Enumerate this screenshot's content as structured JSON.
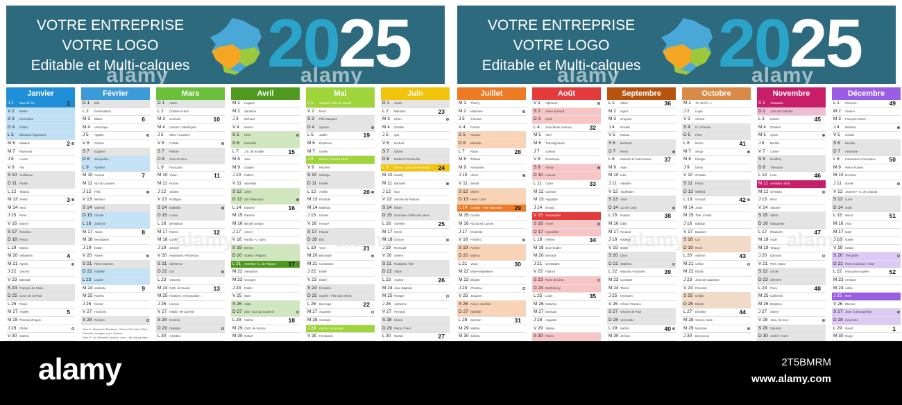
{
  "banner": {
    "line1": "VOTRE ENTREPRISE",
    "line2": "VOTRE LOGO",
    "line3": "Editable et Multi-calques",
    "year_a": "20",
    "year_b": "25"
  },
  "watermark": "alamy",
  "footer": {
    "logo": "alamy",
    "image_id": "2T5BMRM",
    "url": "www.alamy.com"
  },
  "legend_lines": [
    "Zone A : Besançon, Bordeaux, Clermont-Ferrand, Dijon, Grenoble, Limoges, Lyon, Poitiers",
    "Zone B : Aix-Marseille, Amiens, Caen, Lille, Nancy-Metz, Nantes, Nice, Orléans-Tours, Reims, Rennes, Rouen, Strasbourg",
    "Zone C : Créteil, Montpellier, Paris, Toulouse, Versailles"
  ],
  "colors": {
    "banner": "#2e6a7e",
    "year_accent": "#2aa4c8",
    "weekend_hint": "#e4e4e4",
    "zone_a": "#f5a623",
    "zone_b": "#9cc83c",
    "zone_c": "#4aa8d8"
  },
  "months": [
    {
      "name": "Janvier",
      "color": "#1f8ed8",
      "light": "#bde0f7",
      "start": 3,
      "days": 31,
      "names": [
        "Jour de l'An",
        "Basile",
        "Geneviève",
        "Odilon",
        "Édouard / Épiphanie",
        "Mélaine",
        "Raymond",
        "Lucien",
        "Alix",
        "Guillaume",
        "Paulin",
        "Tatiana",
        "Yvette",
        "Nina",
        "Rémi",
        "Marcel",
        "Roseline",
        "Prisca",
        "Marius",
        "Sébastien",
        "Agnès",
        "Vincent",
        "Barnard",
        "François de Sales",
        "Conv. de St Paul",
        "Paule",
        "Angèle",
        "Thomas d'Aquin",
        "Gildas",
        "Martine",
        "Marcelle"
      ],
      "weeks": {
        "1": "1",
        "6": "2",
        "13": "3",
        "20": "4",
        "27": "5"
      },
      "moons": {
        "6": "half",
        "13": "full",
        "21": "half",
        "29": "new"
      },
      "holidays": [
        1
      ],
      "vacances": [
        1,
        2,
        3,
        4,
        5
      ]
    },
    {
      "name": "Février",
      "color": "#3b9ad8",
      "light": "#c4e2f6",
      "start": 6,
      "days": 28,
      "names": [
        "Ella",
        "Présentation",
        "Blaise",
        "Véronique",
        "Agathe",
        "Gaston",
        "Eugénie",
        "Jacqueline",
        "Apolline",
        "Arnaud",
        "ND de Lourdes",
        "Félix",
        "Béatrice",
        "Valentin",
        "Claude",
        "Julienne",
        "Alexis",
        "Bernadette",
        "Gabin",
        "Aimée",
        "Pierre Damien",
        "Isabelle",
        "Lazare",
        "Modeste",
        "Roméo",
        "Nestor",
        "Honorine",
        "Romain"
      ],
      "weeks": {
        "3": "6",
        "10": "7",
        "17": "8",
        "24": "9"
      },
      "moons": {
        "5": "half",
        "12": "full",
        "20": "half",
        "28": "new"
      },
      "holidays": [],
      "vacances": [
        8,
        9,
        15,
        16,
        22,
        23
      ]
    },
    {
      "name": "Mars",
      "color": "#6cbf3a",
      "light": "#d6efc4",
      "start": 6,
      "days": 31,
      "names": [
        "Aubin",
        "Charles le Bon",
        "Guénolé",
        "Casimir / Mardi-gras",
        "Olive / Cendres",
        "Colette",
        "Félicité",
        "Jean De Dieu",
        "Françoise",
        "Vivien",
        "Rosine",
        "Justine",
        "Rodrigue",
        "Mathilde",
        "Louise",
        "Bénédicte",
        "Patrice",
        "Cyrille",
        "Joseph",
        "Alexandre / Printemps",
        "Clémence",
        "Léa",
        "Victorien",
        "Cath. de Suède",
        "Humbert / Annonciation",
        "Larissa",
        "Habib / Mi-Carême",
        "Gontran",
        "Gwladys",
        "Amédée",
        "Benjamin"
      ],
      "weeks": {
        "3": "10",
        "10": "11",
        "17": "12",
        "24": "13",
        "31": "14"
      },
      "moons": {
        "6": "half",
        "14": "full",
        "22": "half",
        "29": "new"
      },
      "holidays": [],
      "vacances": []
    },
    {
      "name": "Avril",
      "color": "#4f9a1e",
      "light": "#cfe7bd",
      "start": 1,
      "days": 30,
      "names": [
        "Hugues",
        "Sandrine",
        "Richard",
        "Isidore",
        "Irène",
        "Marcellin",
        "J.B. de la Salle",
        "Julie",
        "Gautier",
        "Fulbert",
        "Stanislas",
        "Jules",
        "Ida / Rameaux",
        "Maxime",
        "Paterne",
        "Benoît-Joseph",
        "Anicet",
        "Parfait / V. Saint",
        "Emma",
        "Odette / Pâques",
        "Anselme / L. de Pâques",
        "Alexandre",
        "Georges",
        "Fidèle",
        "Marc",
        "Alida",
        "Zita / Jour du Souvenir",
        "Valérie",
        "Cath. de Sienne",
        "Robert"
      ],
      "weeks": {
        "7": "15",
        "14": "16",
        "21": "17",
        "28": "18"
      },
      "moons": {
        "5": "half",
        "13": "full",
        "21": "half",
        "27": "new"
      },
      "holidays": [
        21
      ],
      "vacances": [
        5,
        6,
        12,
        13,
        19,
        20,
        26,
        27
      ]
    },
    {
      "name": "Mai",
      "color": "#9fd43a",
      "light": "#e2f2bd",
      "start": 3,
      "days": 31,
      "names": [
        "Joseph / Fête du Travail",
        "Boris",
        "Phil./Jacques",
        "Sylvain",
        "Judith",
        "Prudence",
        "Gisèle",
        "Désiré / Victoire 1945",
        "Pacôme",
        "Solange",
        "Estelle",
        "Achille",
        "Rolande",
        "Matthias",
        "Denise",
        "Honoré",
        "Pascal",
        "Éric",
        "Yves",
        "Bernardin",
        "Constantin",
        "Émile",
        "Didier",
        "Donatien",
        "Sophie / Fête des mères",
        "Bérenger",
        "Augustin",
        "Germain",
        "Aymar / Ascension",
        "Ferdinand",
        "Pernelle / Visitation"
      ],
      "weeks": {
        "5": "19",
        "12": "20",
        "19": "21",
        "26": "22"
      },
      "moons": {
        "4": "half",
        "12": "full",
        "20": "half",
        "27": "new"
      },
      "holidays": [
        1,
        8,
        29
      ],
      "vacances": []
    },
    {
      "name": "Juin",
      "color": "#f2c40c",
      "light": "#fbeaa6",
      "start": 6,
      "days": 30,
      "names": [
        "Justin",
        "Blandine",
        "Kévin",
        "Clotilde",
        "Igor",
        "Norbert",
        "Gilbert",
        "Médard / Pentecôte",
        "Diane / Lundi de Pentecôte",
        "Landry",
        "Barnabé",
        "Guy",
        "Antoine de Padoue",
        "Élisée",
        "Germaine / Fête des pères",
        "Aurélien",
        "Hervé",
        "Léonce",
        "Romuald",
        "Silvère",
        "Rodolphe / Été",
        "Alban",
        "Audrey",
        "Jean-Baptiste",
        "Prosper",
        "Anthelme",
        "Fernand",
        "Irénée",
        "Pierre / Paul",
        "Martial"
      ],
      "weeks": {
        "2": "23",
        "9": "24",
        "16": "25",
        "23": "26",
        "30": "27"
      },
      "moons": {
        "3": "half",
        "11": "full",
        "18": "half",
        "25": "new"
      },
      "holidays": [
        9
      ],
      "vacances": []
    },
    {
      "name": "Juillet",
      "color": "#ee7a24",
      "light": "#f9d3b4",
      "start": 1,
      "days": 31,
      "names": [
        "Thierry",
        "Martinien",
        "Thomas",
        "Florent",
        "Antoine",
        "Mariette",
        "Raoul",
        "Thibaut",
        "Amandine",
        "Ulrich",
        "Benoît",
        "Olivier",
        "Henri / Joël",
        "Camille / Fête Nationale",
        "Donald",
        "ND du Mt Carmel",
        "Charlotte",
        "Frédéric",
        "Arsène",
        "Marina",
        "Victor",
        "Marie-Madeleine",
        "Brigitte",
        "Christine",
        "Jacques",
        "Anne / Joachim",
        "Nathalie",
        "Samson",
        "Marthe",
        "Juliette",
        "Ignace de L."
      ],
      "weeks": {
        "7": "28",
        "14": "29",
        "21": "30",
        "28": "31"
      },
      "moons": {
        "2": "half",
        "10": "full",
        "18": "half",
        "24": "new"
      },
      "holidays": [
        14
      ],
      "vacances": [
        5,
        6,
        12,
        13,
        19,
        20,
        26,
        27
      ]
    },
    {
      "name": "Août",
      "color": "#e43a3a",
      "light": "#f8c4c4",
      "start": 4,
      "days": 31,
      "names": [
        "Alphonse",
        "Julien Eymard",
        "Lydie",
        "Jean-Marie Vianney",
        "Abel",
        "Transfiguration",
        "Gaétan",
        "Dominique",
        "Amour",
        "Laurent",
        "Claire",
        "Clarisse",
        "Hippolyte",
        "Évrard",
        "Assomption",
        "Armel",
        "Hyacinthe",
        "Hélène",
        "Jean Eudes",
        "Bernard",
        "Christophe",
        "Fabrice",
        "Rose de Lima",
        "Barthélemy",
        "Louis",
        "Natacha",
        "Monique",
        "Augustin",
        "Sabine",
        "Fiacre",
        "Aristide"
      ],
      "weeks": {
        "4": "32",
        "11": "33",
        "18": "34",
        "25": "35"
      },
      "moons": {
        "1": "half",
        "9": "full",
        "16": "half",
        "23": "new",
        "31": "half"
      },
      "holidays": [
        15
      ],
      "vacances": [
        2,
        3,
        9,
        10,
        16,
        17,
        23,
        24,
        30,
        31
      ]
    },
    {
      "name": "Septembre",
      "color": "#b5530f",
      "light": "#ecc9ad",
      "start": 0,
      "days": 30,
      "names": [
        "Gilles",
        "Ingrid",
        "Grégoire",
        "Rosalie",
        "Raïssa",
        "Bertrand",
        "Reine",
        "Nativité de Notre-Dame",
        "Alain",
        "Inès",
        "Adelphe",
        "Apollinaire",
        "Aimé",
        "La Ste Croix",
        "Roland",
        "Édith",
        "Renaud",
        "Nadège",
        "Émilie",
        "Davy",
        "Matthieu",
        "Maurice / Automne",
        "Constant",
        "Thècle",
        "Hermann",
        "Côme / Damien",
        "Vincent de Paul",
        "Venceslas",
        "Michel",
        "Jérôme"
      ],
      "weeks": {
        "1": "36",
        "8": "37",
        "15": "38",
        "22": "39",
        "29": "40"
      },
      "moons": {
        "7": "full",
        "14": "half",
        "21": "new",
        "29": "half"
      },
      "holidays": [],
      "vacances": []
    },
    {
      "name": "Octobre",
      "color": "#d98a46",
      "light": "#f2dac4",
      "start": 2,
      "days": 31,
      "names": [
        "Th. de l'E.-J.",
        "Léger",
        "Gérard",
        "Fr. d'Assise",
        "Fleur",
        "Bruno",
        "Serge",
        "Pélagie",
        "Denis",
        "Ghislain",
        "Firmin",
        "Wilfried",
        "Géraud",
        "Juste",
        "Thér. d'Avila",
        "Edwige",
        "Baudoin",
        "Luc",
        "René",
        "Adeline",
        "Céline",
        "Élodie",
        "Jean de Capistran",
        "Florentin",
        "Crépin",
        "Dimitri",
        "Émeline",
        "Simon / Jude",
        "Narcisse",
        "Bienvenue",
        "Quentin"
      ],
      "weeks": {
        "6": "41",
        "13": "42",
        "20": "43",
        "27": "44"
      },
      "moons": {
        "7": "full",
        "13": "half",
        "21": "new",
        "29": "half"
      },
      "holidays": [],
      "vacances": [
        18,
        19,
        25,
        26
      ]
    },
    {
      "name": "Novembre",
      "color": "#c81e6a",
      "light": "#f0bdd4",
      "start": 5,
      "days": 30,
      "names": [
        "Toussaint",
        "Jour des Défunts",
        "Hubert",
        "Charles",
        "Sylvie",
        "Bertille",
        "Carine",
        "Geoffroy",
        "Théodore",
        "Léon",
        "Armistice 1918",
        "Christian",
        "Brice",
        "Sidoine",
        "Albert",
        "Marguerite",
        "Élisabeth",
        "Aude",
        "Tanguy",
        "Edmond",
        "Prés. Marie",
        "Cécile",
        "Clément",
        "Flora",
        "Catherine",
        "Delphine",
        "Sévrin",
        "Jacq. de la M.",
        "Saturnin",
        "André / Avent"
      ],
      "weeks": {
        "3": "45",
        "10": "46",
        "17": "47",
        "24": "48"
      },
      "moons": {
        "5": "full",
        "12": "half",
        "20": "new",
        "28": "half"
      },
      "holidays": [
        1,
        11
      ],
      "vacances": [
        1,
        2
      ]
    },
    {
      "name": "Décembre",
      "color": "#9b5de5",
      "light": "#dcc9f5",
      "start": 0,
      "days": 31,
      "names": [
        "Florence",
        "Viviane",
        "François-Xavier",
        "Barbara",
        "Gérald",
        "Nicolas",
        "Ambroise",
        "Immaculée Conception",
        "Pierre Fourier",
        "Romaric",
        "Daniel",
        "Jeanne F.-C. de Chantal",
        "Lucie",
        "Odile",
        "Ninon",
        "Alice",
        "Gaël",
        "Gatien",
        "Urbain",
        "Théophile",
        "Pierre Canisius / Hiver",
        "Françoise-Xavière",
        "Armand",
        "Adèle",
        "Noël",
        "Étienne",
        "Jean / L'Évangéliste",
        "Innocents",
        "David",
        "Roger",
        "Sylvestre"
      ],
      "weeks": {
        "1": "49",
        "8": "50",
        "15": "51",
        "22": "52",
        "29": "1"
      },
      "moons": {
        "4": "full",
        "11": "half",
        "20": "new",
        "27": "half"
      },
      "holidays": [
        25
      ],
      "vacances": [
        20,
        21,
        27,
        28
      ]
    }
  ]
}
